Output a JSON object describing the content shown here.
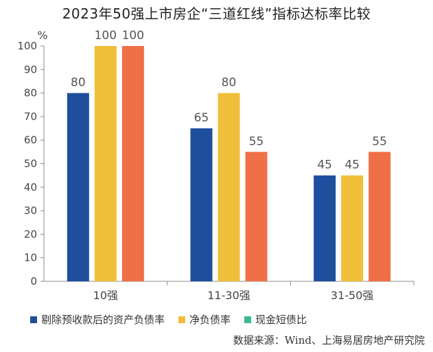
{
  "chart_data": {
    "type": "bar",
    "title": "2023年50强上市房企“三道红线”指标达标率比较",
    "unit_label": "%",
    "categories": [
      "10强",
      "11-30强",
      "31-50强"
    ],
    "series": [
      {
        "name": "剔除预收款后的资产负债率",
        "color": "#1f4e9c",
        "values": [
          80,
          65,
          45
        ]
      },
      {
        "name": "净负债率",
        "color": "#f0bf3a",
        "values": [
          100,
          80,
          45
        ]
      },
      {
        "name": "现金短债比",
        "color": "#ef7047",
        "legend_color": "#3dbb8b",
        "values": [
          100,
          55,
          55
        ]
      }
    ],
    "ylim": [
      0,
      100
    ],
    "yticks": [
      0,
      10,
      20,
      30,
      40,
      50,
      60,
      70,
      80,
      90,
      100
    ],
    "legend_position": "bottom-left",
    "grid": false
  },
  "source": "数据来源：Wind、上海易居房地产研究院"
}
